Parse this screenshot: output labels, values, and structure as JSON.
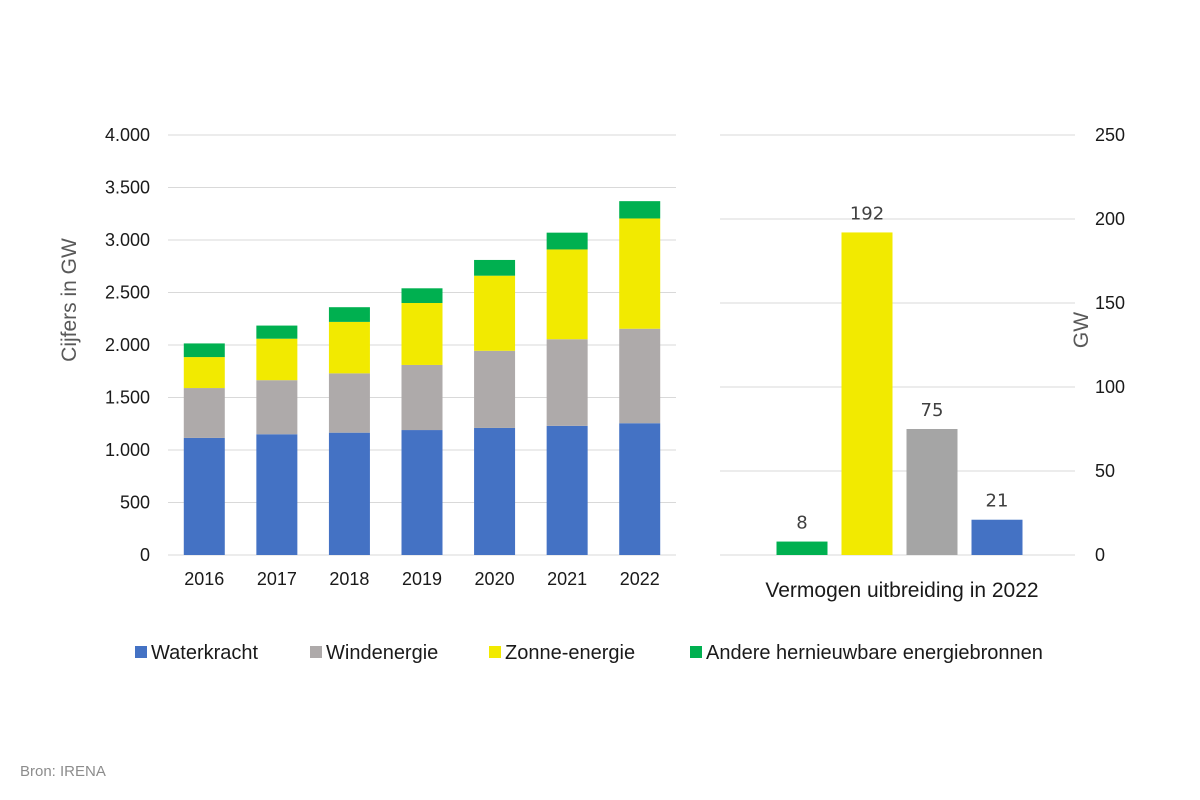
{
  "chart_data": [
    {
      "type": "bar",
      "stacked": true,
      "categories": [
        "2016",
        "2017",
        "2018",
        "2019",
        "2020",
        "2021",
        "2022"
      ],
      "ylabel": "Cijfers in GW",
      "ylim": [
        0,
        4000
      ],
      "yticks": [
        0,
        500,
        1000,
        1500,
        2000,
        2500,
        3000,
        3500,
        4000
      ],
      "ytick_labels": [
        "0",
        "500",
        "1.000",
        "1.500",
        "2.000",
        "2.500",
        "3.000",
        "3.500",
        "4.000"
      ],
      "grid": true,
      "series": [
        {
          "name": "Waterkracht",
          "color": "#4472C4",
          "values": [
            1115,
            1150,
            1165,
            1190,
            1210,
            1230,
            1255
          ]
        },
        {
          "name": "Windenergie",
          "color": "#AEAAAA",
          "values": [
            475,
            515,
            565,
            620,
            735,
            825,
            900
          ]
        },
        {
          "name": "Zonne-energie",
          "color": "#F2EA00",
          "values": [
            295,
            395,
            490,
            590,
            715,
            855,
            1050
          ]
        },
        {
          "name": "Andere hernieuwbare energiebronnen",
          "color": "#00B050",
          "values": [
            130,
            125,
            140,
            140,
            150,
            160,
            165
          ]
        }
      ]
    },
    {
      "type": "bar",
      "xlabel": "Vermogen uitbreiding in 2022",
      "ylabel": "GW",
      "ylim": [
        0,
        250
      ],
      "yticks": [
        0,
        50,
        100,
        150,
        200,
        250
      ],
      "ytick_labels": [
        "0",
        "50",
        "100",
        "150",
        "200",
        "250"
      ],
      "grid": true,
      "bars": [
        {
          "value": 8,
          "label": "8",
          "color": "#00B050"
        },
        {
          "value": 192,
          "label": "192",
          "color": "#F2EA00"
        },
        {
          "value": 75,
          "label": "75",
          "color": "#A5A5A5"
        },
        {
          "value": 21,
          "label": "21",
          "color": "#4472C4"
        }
      ]
    }
  ],
  "legend": {
    "position": "bottom",
    "items": [
      {
        "label": "Waterkracht",
        "color": "#4472C4"
      },
      {
        "label": "Windenergie",
        "color": "#AEAAAA"
      },
      {
        "label": "Zonne-energie",
        "color": "#F2EA00"
      },
      {
        "label": "Andere hernieuwbare energiebronnen",
        "color": "#00B050"
      }
    ]
  },
  "source": "Bron: IRENA"
}
